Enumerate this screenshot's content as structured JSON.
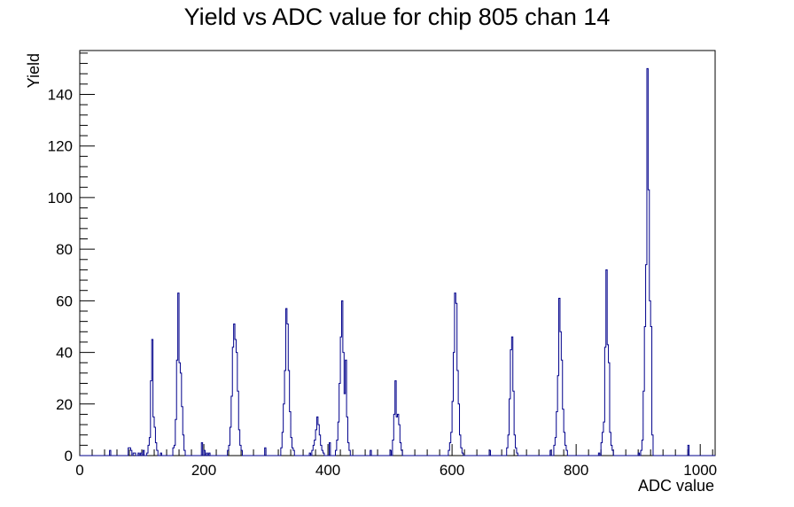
{
  "chart_data": {
    "type": "histogram",
    "title": "Yield vs ADC value for chip 805 chan 14",
    "xlabel": "ADC value",
    "ylabel": "Yield",
    "xlim": [
      0,
      1024
    ],
    "ylim": [
      0,
      157
    ],
    "x_ticks": [
      0,
      200,
      400,
      600,
      800,
      1000
    ],
    "y_ticks": [
      0,
      20,
      40,
      60,
      80,
      100,
      120,
      140
    ],
    "x_tick_labels": [
      "0",
      "200",
      "400",
      "600",
      "800",
      "1000"
    ],
    "y_tick_labels": [
      "0",
      "20",
      "40",
      "60",
      "80",
      "100",
      "120",
      "140"
    ],
    "bin_width": 2,
    "color": "#00008b",
    "grid": false,
    "legend": "none",
    "series": [
      {
        "bins": [
          [
            48,
            2
          ],
          [
            78,
            3
          ],
          [
            80,
            3
          ],
          [
            82,
            2
          ],
          [
            86,
            1
          ],
          [
            88,
            1
          ],
          [
            94,
            1
          ],
          [
            98,
            1
          ],
          [
            102,
            2
          ],
          [
            108,
            1
          ],
          [
            110,
            4
          ],
          [
            112,
            7
          ],
          [
            114,
            29
          ],
          [
            116,
            45
          ],
          [
            118,
            15
          ],
          [
            120,
            11
          ],
          [
            122,
            5
          ],
          [
            124,
            2
          ],
          [
            130,
            1
          ],
          [
            150,
            3
          ],
          [
            152,
            4
          ],
          [
            154,
            14
          ],
          [
            156,
            37
          ],
          [
            158,
            63
          ],
          [
            160,
            36
          ],
          [
            162,
            32
          ],
          [
            164,
            19
          ],
          [
            166,
            8
          ],
          [
            168,
            2
          ],
          [
            196,
            5
          ],
          [
            200,
            2
          ],
          [
            204,
            1
          ],
          [
            208,
            1
          ],
          [
            238,
            2
          ],
          [
            240,
            4
          ],
          [
            242,
            11
          ],
          [
            244,
            23
          ],
          [
            246,
            42
          ],
          [
            248,
            51
          ],
          [
            250,
            45
          ],
          [
            252,
            40
          ],
          [
            254,
            25
          ],
          [
            256,
            10
          ],
          [
            258,
            4
          ],
          [
            260,
            2
          ],
          [
            298,
            3
          ],
          [
            324,
            3
          ],
          [
            326,
            9
          ],
          [
            328,
            20
          ],
          [
            330,
            33
          ],
          [
            332,
            57
          ],
          [
            334,
            51
          ],
          [
            336,
            33
          ],
          [
            338,
            17
          ],
          [
            340,
            7
          ],
          [
            342,
            3
          ],
          [
            344,
            2
          ],
          [
            370,
            1
          ],
          [
            374,
            2
          ],
          [
            376,
            4
          ],
          [
            378,
            6
          ],
          [
            380,
            10
          ],
          [
            382,
            15
          ],
          [
            384,
            12
          ],
          [
            386,
            8
          ],
          [
            388,
            4
          ],
          [
            390,
            2
          ],
          [
            392,
            1
          ],
          [
            402,
            5
          ],
          [
            412,
            2
          ],
          [
            414,
            6
          ],
          [
            416,
            13
          ],
          [
            418,
            28
          ],
          [
            420,
            46
          ],
          [
            422,
            60
          ],
          [
            424,
            40
          ],
          [
            426,
            24
          ],
          [
            428,
            37
          ],
          [
            430,
            15
          ],
          [
            432,
            5
          ],
          [
            434,
            2
          ],
          [
            468,
            2
          ],
          [
            500,
            2
          ],
          [
            504,
            6
          ],
          [
            506,
            16
          ],
          [
            508,
            29
          ],
          [
            510,
            15
          ],
          [
            512,
            16
          ],
          [
            514,
            12
          ],
          [
            516,
            5
          ],
          [
            518,
            2
          ],
          [
            594,
            2
          ],
          [
            596,
            5
          ],
          [
            598,
            9
          ],
          [
            600,
            21
          ],
          [
            602,
            40
          ],
          [
            604,
            63
          ],
          [
            606,
            59
          ],
          [
            608,
            33
          ],
          [
            610,
            20
          ],
          [
            612,
            8
          ],
          [
            614,
            3
          ],
          [
            616,
            1
          ],
          [
            660,
            2
          ],
          [
            688,
            3
          ],
          [
            690,
            8
          ],
          [
            692,
            22
          ],
          [
            694,
            41
          ],
          [
            696,
            46
          ],
          [
            698,
            25
          ],
          [
            700,
            8
          ],
          [
            702,
            3
          ],
          [
            704,
            1
          ],
          [
            758,
            2
          ],
          [
            764,
            4
          ],
          [
            766,
            7
          ],
          [
            768,
            17
          ],
          [
            770,
            31
          ],
          [
            772,
            61
          ],
          [
            774,
            48
          ],
          [
            776,
            37
          ],
          [
            778,
            18
          ],
          [
            780,
            9
          ],
          [
            782,
            4
          ],
          [
            784,
            2
          ],
          [
            836,
            1
          ],
          [
            840,
            5
          ],
          [
            842,
            9
          ],
          [
            844,
            13
          ],
          [
            846,
            42
          ],
          [
            848,
            72
          ],
          [
            850,
            43
          ],
          [
            852,
            36
          ],
          [
            854,
            9
          ],
          [
            856,
            4
          ],
          [
            858,
            2
          ],
          [
            900,
            1
          ],
          [
            904,
            2
          ],
          [
            906,
            6
          ],
          [
            908,
            25
          ],
          [
            910,
            50
          ],
          [
            912,
            74
          ],
          [
            914,
            150
          ],
          [
            916,
            103
          ],
          [
            918,
            60
          ],
          [
            920,
            50
          ],
          [
            922,
            8
          ],
          [
            980,
            4
          ]
        ]
      }
    ]
  }
}
